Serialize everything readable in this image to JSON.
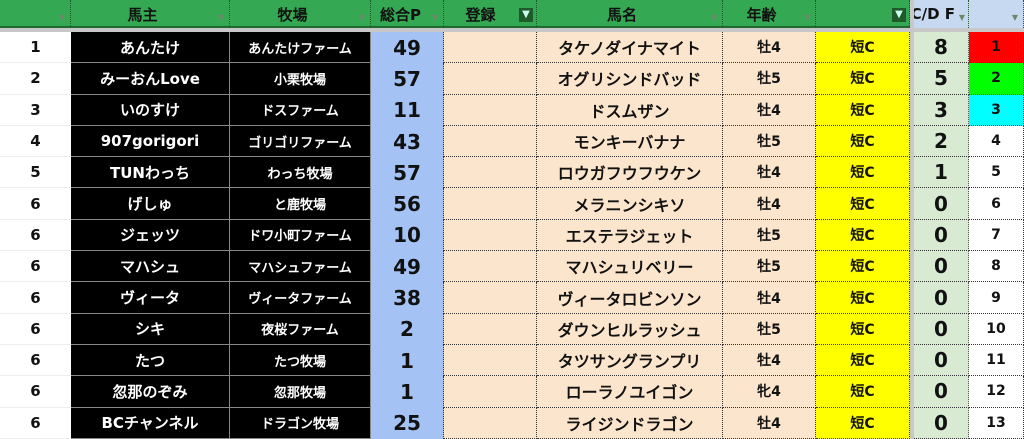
{
  "header": {
    "rank": "",
    "owner": "馬主",
    "farm": "牧場",
    "points": "総合P",
    "registered": "登録",
    "horse": "馬名",
    "age": "年齢",
    "distance": "",
    "cdf": "C/D F",
    "number": ""
  },
  "colors": {
    "header_green": "#34a853",
    "points_blue": "#a4c2f4",
    "peach": "#fce5cd",
    "yellow": "#ffff00",
    "cdf_green": "#d9ead3",
    "num1": "#ff0000",
    "num2": "#00ff00",
    "num3": "#00ffff"
  },
  "rows": [
    {
      "rank": "1",
      "owner": "あんたけ",
      "farm": "あんたけファーム",
      "points": "49",
      "registered": "",
      "horse": "タケノダイナマイト",
      "age": "牡4",
      "distance": "短C",
      "cdf": "8",
      "number": "1",
      "num_color": "#ff0000"
    },
    {
      "rank": "2",
      "owner": "みーおんLove",
      "farm": "小栗牧場",
      "points": "57",
      "registered": "",
      "horse": "オグリシンドバッド",
      "age": "牡5",
      "distance": "短C",
      "cdf": "5",
      "number": "2",
      "num_color": "#00ff00"
    },
    {
      "rank": "3",
      "owner": "いのすけ",
      "farm": "ドスファーム",
      "points": "11",
      "registered": "",
      "horse": "ドスムザン",
      "age": "牡4",
      "distance": "短C",
      "cdf": "3",
      "number": "3",
      "num_color": "#00ffff"
    },
    {
      "rank": "4",
      "owner": "907gorigori",
      "farm": "ゴリゴリファーム",
      "points": "43",
      "registered": "",
      "horse": "モンキーバナナ",
      "age": "牡5",
      "distance": "短C",
      "cdf": "2",
      "number": "4",
      "num_color": "#ffffff"
    },
    {
      "rank": "5",
      "owner": "TUNわっち",
      "farm": "わっち牧場",
      "points": "57",
      "registered": "",
      "horse": "ロウガフウフウケン",
      "age": "牡4",
      "distance": "短C",
      "cdf": "1",
      "number": "5",
      "num_color": "#ffffff"
    },
    {
      "rank": "6",
      "owner": "げしゅ",
      "farm": "と鹿牧場",
      "points": "56",
      "registered": "",
      "horse": "メラニンシキソ",
      "age": "牡4",
      "distance": "短C",
      "cdf": "0",
      "number": "6",
      "num_color": "#ffffff"
    },
    {
      "rank": "6",
      "owner": "ジェッツ",
      "farm": "ドワ小町ファーム",
      "points": "10",
      "registered": "",
      "horse": "エステラジェット",
      "age": "牡5",
      "distance": "短C",
      "cdf": "0",
      "number": "7",
      "num_color": "#ffffff"
    },
    {
      "rank": "6",
      "owner": "マハシュ",
      "farm": "マハシュファーム",
      "points": "49",
      "registered": "",
      "horse": "マハシュリベリー",
      "age": "牡5",
      "distance": "短C",
      "cdf": "0",
      "number": "8",
      "num_color": "#ffffff"
    },
    {
      "rank": "6",
      "owner": "ヴィータ",
      "farm": "ヴィータファーム",
      "points": "38",
      "registered": "",
      "horse": "ヴィータロビンソン",
      "age": "牡4",
      "distance": "短C",
      "cdf": "0",
      "number": "9",
      "num_color": "#ffffff"
    },
    {
      "rank": "6",
      "owner": "シキ",
      "farm": "夜桜ファーム",
      "points": "2",
      "registered": "",
      "horse": "ダウンヒルラッシュ",
      "age": "牡5",
      "distance": "短C",
      "cdf": "0",
      "number": "10",
      "num_color": "#ffffff"
    },
    {
      "rank": "6",
      "owner": "たつ",
      "farm": "たつ牧場",
      "points": "1",
      "registered": "",
      "horse": "タツサングランプリ",
      "age": "牡4",
      "distance": "短C",
      "cdf": "0",
      "number": "11",
      "num_color": "#ffffff"
    },
    {
      "rank": "6",
      "owner": "忽那のぞみ",
      "farm": "忽那牧場",
      "points": "1",
      "registered": "",
      "horse": "ローラノユイゴン",
      "age": "牝4",
      "distance": "短C",
      "cdf": "0",
      "number": "12",
      "num_color": "#ffffff"
    },
    {
      "rank": "6",
      "owner": "BCチャンネル",
      "farm": "ドラゴン牧場",
      "points": "25",
      "registered": "",
      "horse": "ライジンドラゴン",
      "age": "牡4",
      "distance": "短C",
      "cdf": "0",
      "number": "13",
      "num_color": "#ffffff"
    }
  ]
}
